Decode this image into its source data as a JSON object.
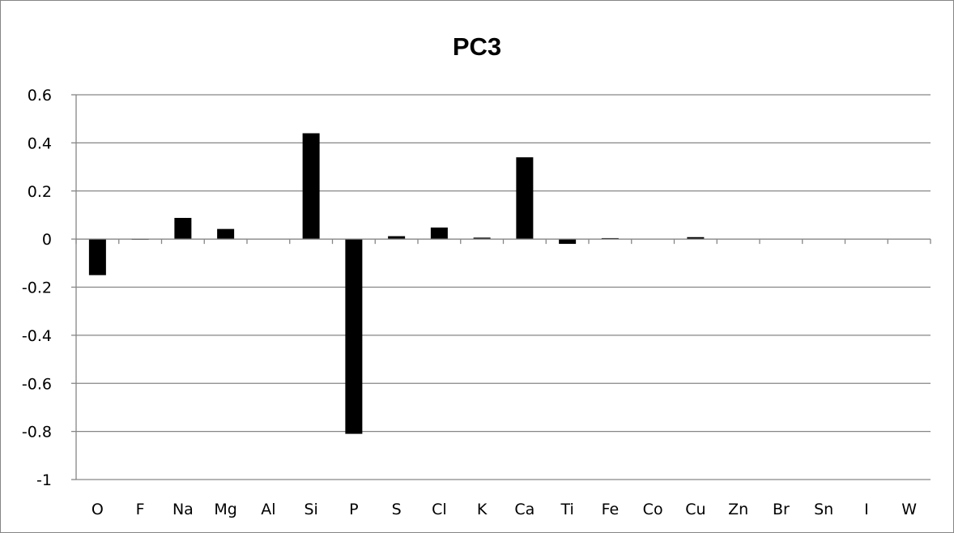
{
  "chart_data": {
    "type": "bar",
    "title": "PC3",
    "xlabel": "",
    "ylabel": "",
    "categories": [
      "O",
      "F",
      "Na",
      "Mg",
      "Al",
      "Si",
      "P",
      "S",
      "Cl",
      "K",
      "Ca",
      "Ti",
      "Fe",
      "Co",
      "Cu",
      "Zn",
      "Br",
      "Sn",
      "I",
      "W"
    ],
    "values": [
      -0.15,
      -0.003,
      0.088,
      0.042,
      0.0,
      0.44,
      -0.81,
      0.012,
      0.048,
      0.006,
      0.34,
      -0.02,
      0.004,
      0.0,
      0.008,
      0.0,
      0.0,
      0.0,
      0.0,
      0.0
    ],
    "ylim": [
      -1,
      0.6
    ],
    "yticks": [
      0.6,
      0.4,
      0.2,
      0,
      -0.2,
      -0.4,
      -0.6,
      -0.8,
      -1
    ],
    "ytick_labels": [
      "0.6",
      "0.4",
      "0.2",
      "0",
      "-0.2",
      "-0.4",
      "-0.6",
      "-0.8",
      "-1"
    ],
    "grid": true,
    "legend": "none",
    "colors": {
      "bar": "#000000",
      "grid": "#868686",
      "axis": "#868686"
    }
  }
}
